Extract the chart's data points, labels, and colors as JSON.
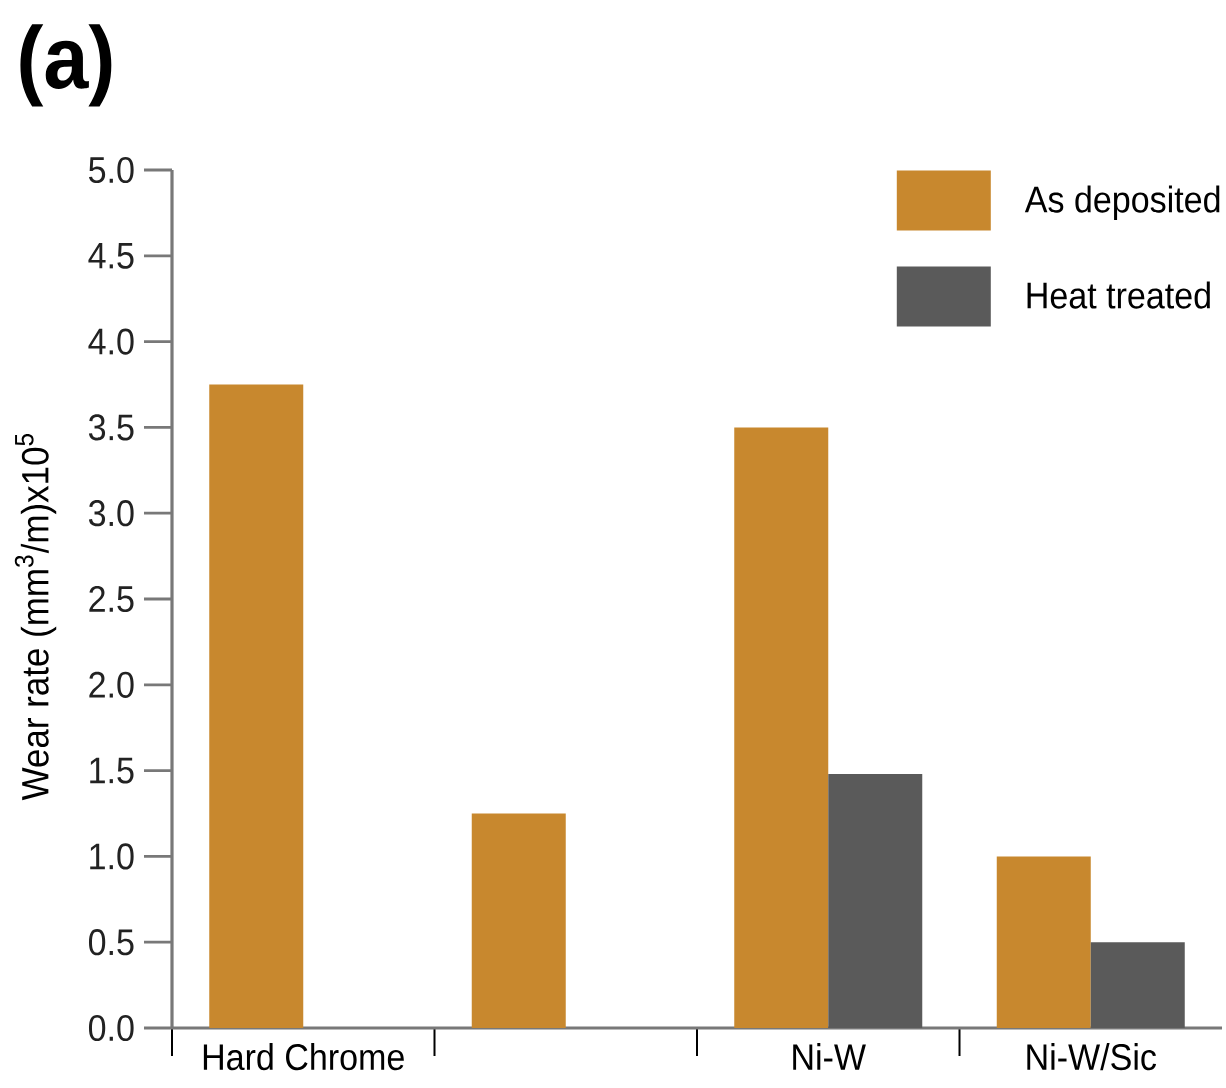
{
  "chart_data": {
    "type": "bar",
    "title": "(a)",
    "ylabel": "Wear rate (mm$^{3}$/m)x10$^{5}$",
    "categories": [
      "Hard Chrome",
      null,
      "Ni-W",
      "Ni-W/Sic"
    ],
    "series": [
      {
        "name": "As deposited",
        "color": "#c8882e",
        "values": [
          3.75,
          1.25,
          3.5,
          1.0
        ]
      },
      {
        "name": "Heat treated",
        "color": "#5a5a5a",
        "values": [
          null,
          null,
          1.48,
          0.5
        ]
      }
    ],
    "ylim": [
      0,
      5
    ],
    "yticks": [
      {
        "value": 0,
        "label": "0.0"
      },
      0.5,
      {
        "value": 1,
        "label": "1.0"
      },
      1.5,
      {
        "value": 2,
        "label": "2.0"
      },
      2.5,
      {
        "value": 3,
        "label": "3.0"
      },
      3.5,
      {
        "value": 4,
        "label": "4.0"
      },
      4.5,
      {
        "value": 5,
        "label": "5.0"
      }
    ],
    "legend": "top right"
  }
}
